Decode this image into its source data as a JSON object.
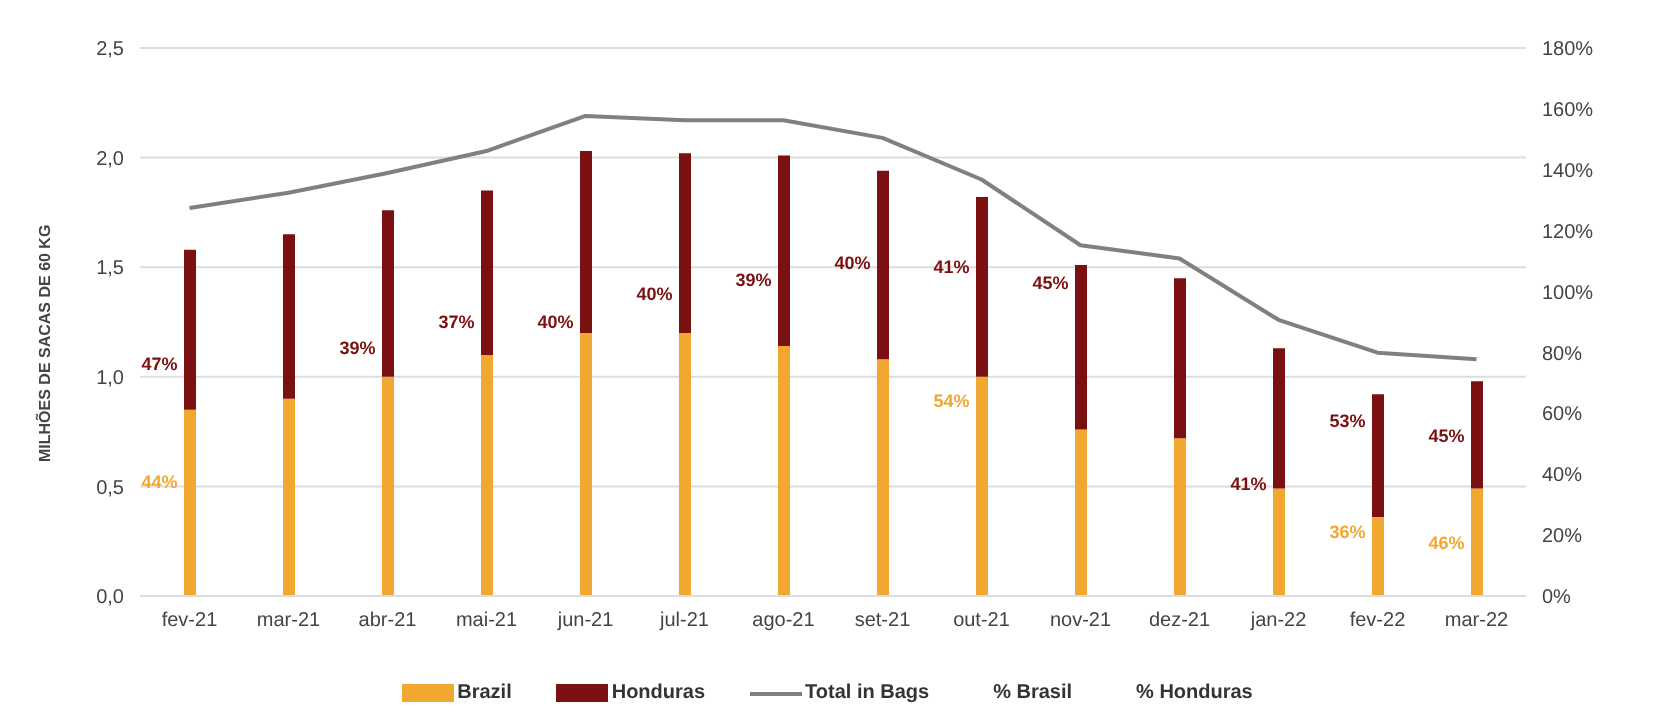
{
  "chart_data": {
    "type": "bar",
    "stacked": true,
    "ylabel": "MILHÕES DE SACAS DE 60 KG",
    "categories": [
      "fev-21",
      "mar-21",
      "abr-21",
      "mai-21",
      "jun-21",
      "jul-21",
      "ago-21",
      "set-21",
      "out-21",
      "nov-21",
      "dez-21",
      "jan-22",
      "fev-22",
      "mar-22"
    ],
    "ylim": [
      0,
      2.5
    ],
    "yticks": [
      {
        "value": 0,
        "label": "0,0"
      },
      {
        "value": 0.5,
        "label": "0,5"
      },
      {
        "value": 1,
        "label": "1,0"
      },
      {
        "value": 1.5,
        "label": "1,5"
      },
      {
        "value": 2,
        "label": "2,0"
      },
      {
        "value": 2.5,
        "label": "2,5"
      }
    ],
    "y2lim": [
      0,
      180
    ],
    "y2ticks": [
      {
        "value": 0,
        "label": "0%"
      },
      {
        "value": 20,
        "label": "20%"
      },
      {
        "value": 40,
        "label": "40%"
      },
      {
        "value": 60,
        "label": "60%"
      },
      {
        "value": 80,
        "label": "80%"
      },
      {
        "value": 100,
        "label": "100%"
      },
      {
        "value": 120,
        "label": "120%"
      },
      {
        "value": 140,
        "label": "140%"
      },
      {
        "value": 160,
        "label": "160%"
      },
      {
        "value": 180,
        "label": "180%"
      }
    ],
    "grid": "y",
    "legend": "bottom",
    "annotations": [
      "% Brasil",
      "% Honduras",
      {
        "text": "44%",
        "x": "fev-21",
        "y": 0.52
      },
      {
        "text": "54%",
        "x": "out-21",
        "y": 0.89
      },
      {
        "text": "41%",
        "x": "jan-22",
        "y": 0.51
      },
      {
        "text": "36%",
        "x": "fev-22",
        "y": 0.29
      },
      {
        "text": "46%",
        "x": "mar-22",
        "y": 0.24
      },
      {
        "text": "47%",
        "x": "fev-21",
        "y": 1.06
      },
      {
        "text": "39%",
        "x": "abr-21",
        "y": 1.13
      },
      {
        "text": "37%",
        "x": "mai-21",
        "y": 1.25
      },
      {
        "text": "40%",
        "x": "jun-21",
        "y": 1.25
      },
      {
        "text": "40%",
        "x": "jul-21",
        "y": 1.38
      },
      {
        "text": "39%",
        "x": "ago-21",
        "y": 1.44
      },
      {
        "text": "40%",
        "x": "set-21",
        "y": 1.52
      },
      {
        "text": "41%",
        "x": "out-21",
        "y": 1.5
      },
      {
        "text": "45%",
        "x": "nov-21",
        "y": 1.43
      },
      {
        "text": "53%",
        "x": "fev-22",
        "y": 0.8
      },
      {
        "text": "45%",
        "x": "mar-22",
        "y": 0.73
      }
    ],
    "series": [
      {
        "name": "Brazil",
        "color": "#f0a830",
        "values": [
          0.85,
          0.9,
          1.0,
          1.1,
          1.2,
          1.2,
          1.14,
          1.08,
          1.0,
          0.76,
          0.72,
          0.49,
          0.36,
          0.49
        ]
      },
      {
        "name": "Honduras",
        "color": "#7a1010",
        "values": [
          0.73,
          0.75,
          0.76,
          0.75,
          0.83,
          0.82,
          0.87,
          0.86,
          0.82,
          0.75,
          0.73,
          0.64,
          0.56,
          0.49
        ]
      },
      {
        "name": "Total in Bags",
        "type": "line",
        "color": "#808080",
        "values": [
          1.77,
          1.84,
          1.93,
          2.03,
          2.19,
          2.17,
          2.17,
          2.09,
          1.9,
          1.6,
          1.54,
          1.26,
          1.11,
          1.08
        ]
      }
    ]
  }
}
